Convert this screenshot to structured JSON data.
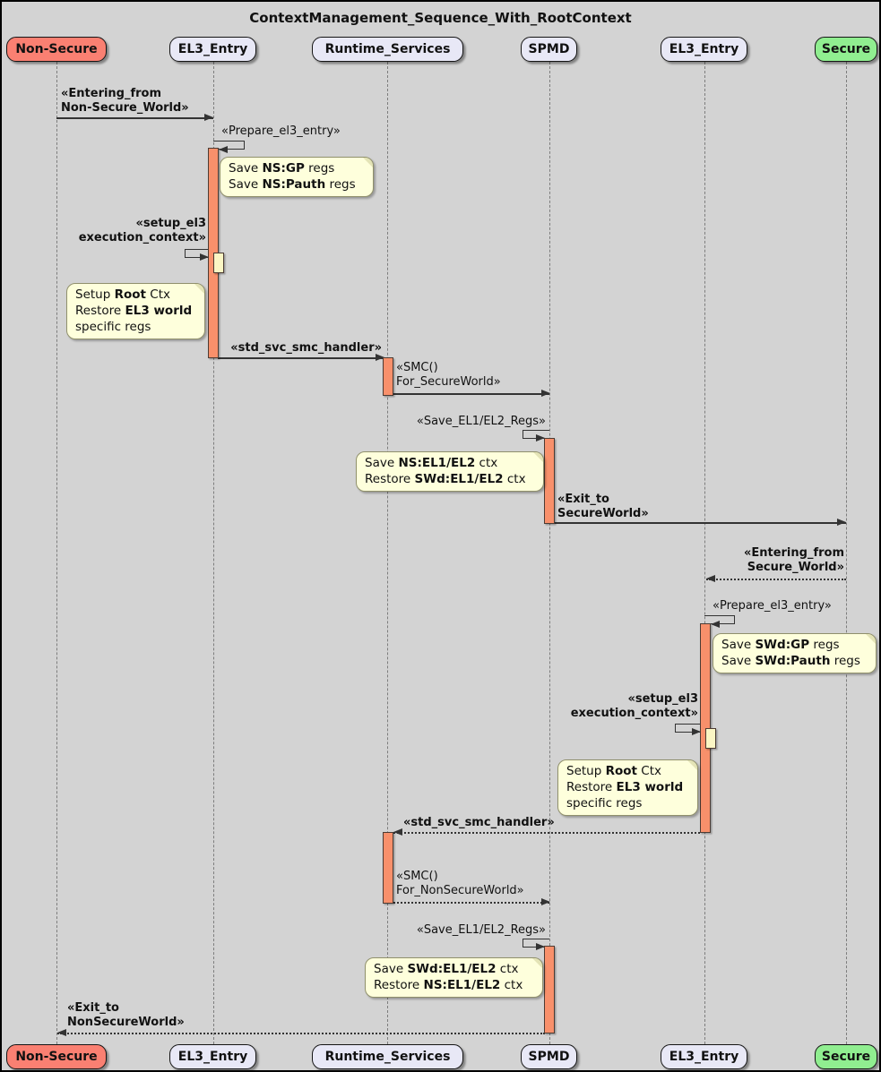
{
  "title": "ContextManagement_Sequence_With_RootContext",
  "colors": {
    "background": "#D3D3D3",
    "participant_default": "#E8E8F6",
    "participant_non_secure": "#FA8072",
    "participant_secure": "#90EE90",
    "activation": "#F8906B",
    "activation_nested": "#FBF6C4",
    "note_background": "#FEFFDC",
    "line": "#333333"
  },
  "participants": [
    {
      "label": "Non-Secure",
      "fill": "#FA8072"
    },
    {
      "label": "EL3_Entry",
      "fill": "#E8E8F6"
    },
    {
      "label": "Runtime_Services",
      "fill": "#E8E8F6"
    },
    {
      "label": "SPMD",
      "fill": "#E8E8F6"
    },
    {
      "label": "EL3_Entry",
      "fill": "#E8E8F6"
    },
    {
      "label": "Secure",
      "fill": "#90EE90"
    }
  ],
  "messages": [
    {
      "label": "«Entering_from\nNon-Secure_World»",
      "from": "Non-Secure",
      "to": "EL3_Entry",
      "style": "solid",
      "bold": true
    },
    {
      "label": "«Prepare_el3_entry»",
      "from": "EL3_Entry",
      "to": "EL3_Entry",
      "style": "self",
      "bold": false
    },
    {
      "label": "«setup_el3\nexecution_context»",
      "from": "EL3_Entry",
      "to": "EL3_Entry",
      "style": "self",
      "bold": true
    },
    {
      "label": "«std_svc_smc_handler»",
      "from": "EL3_Entry",
      "to": "Runtime_Services",
      "style": "solid",
      "bold": true
    },
    {
      "label": "«SMC()\nFor_SecureWorld»",
      "from": "Runtime_Services",
      "to": "SPMD",
      "style": "solid",
      "bold": false
    },
    {
      "label": "«Save_EL1/EL2_Regs»",
      "from": "SPMD",
      "to": "SPMD",
      "style": "self",
      "bold": false
    },
    {
      "label": "«Exit_to\nSecureWorld»",
      "from": "SPMD",
      "to": "Secure",
      "style": "solid",
      "bold": true
    },
    {
      "label": "«Entering_from\nSecure_World»",
      "from": "Secure",
      "to": "EL3_Entry",
      "style": "dotted",
      "bold": true
    },
    {
      "label": "«Prepare_el3_entry»",
      "from": "EL3_Entry",
      "to": "EL3_Entry",
      "style": "self",
      "bold": false
    },
    {
      "label": "«setup_el3\nexecution_context»",
      "from": "EL3_Entry",
      "to": "EL3_Entry",
      "style": "self",
      "bold": true
    },
    {
      "label": "«std_svc_smc_handler»",
      "from": "EL3_Entry",
      "to": "Runtime_Services",
      "style": "dotted",
      "bold": true
    },
    {
      "label": "«SMC()\nFor_NonSecureWorld»",
      "from": "Runtime_Services",
      "to": "SPMD",
      "style": "dotted",
      "bold": false
    },
    {
      "label": "«Save_EL1/EL2_Regs»",
      "from": "SPMD",
      "to": "SPMD",
      "style": "self",
      "bold": false
    },
    {
      "label": "«Exit_to\nNonSecureWorld»",
      "from": "SPMD",
      "to": "Non-Secure",
      "style": "dotted",
      "bold": true
    }
  ],
  "notes": [
    {
      "lines": [
        [
          {
            "t": "Save ",
            "b": false
          },
          {
            "t": "NS:GP",
            "b": true
          },
          {
            "t": " regs",
            "b": false
          }
        ],
        [
          {
            "t": "Save ",
            "b": false
          },
          {
            "t": "NS:Pauth",
            "b": true
          },
          {
            "t": " regs",
            "b": false
          }
        ]
      ]
    },
    {
      "lines": [
        [
          {
            "t": "Setup ",
            "b": false
          },
          {
            "t": "Root",
            "b": true
          },
          {
            "t": " Ctx",
            "b": false
          }
        ],
        [
          {
            "t": "Restore ",
            "b": false
          },
          {
            "t": "EL3 world",
            "b": true
          }
        ],
        [
          {
            "t": "specific regs",
            "b": false
          }
        ]
      ]
    },
    {
      "lines": [
        [
          {
            "t": "Save ",
            "b": false
          },
          {
            "t": "NS:EL1/EL2",
            "b": true
          },
          {
            "t": " ctx",
            "b": false
          }
        ],
        [
          {
            "t": "Restore ",
            "b": false
          },
          {
            "t": "SWd:EL1/EL2",
            "b": true
          },
          {
            "t": " ctx",
            "b": false
          }
        ]
      ]
    },
    {
      "lines": [
        [
          {
            "t": "Save ",
            "b": false
          },
          {
            "t": "SWd:GP",
            "b": true
          },
          {
            "t": " regs",
            "b": false
          }
        ],
        [
          {
            "t": "Save ",
            "b": false
          },
          {
            "t": "SWd:Pauth",
            "b": true
          },
          {
            "t": " regs",
            "b": false
          }
        ]
      ]
    },
    {
      "lines": [
        [
          {
            "t": "Setup ",
            "b": false
          },
          {
            "t": "Root",
            "b": true
          },
          {
            "t": " Ctx",
            "b": false
          }
        ],
        [
          {
            "t": "Restore ",
            "b": false
          },
          {
            "t": "EL3 world",
            "b": true
          }
        ],
        [
          {
            "t": "specific regs",
            "b": false
          }
        ]
      ]
    },
    {
      "lines": [
        [
          {
            "t": "Save ",
            "b": false
          },
          {
            "t": "SWd:EL1/EL2",
            "b": true
          },
          {
            "t": " ctx",
            "b": false
          }
        ],
        [
          {
            "t": "Restore ",
            "b": false
          },
          {
            "t": "NS:EL1/EL2",
            "b": true
          },
          {
            "t": " ctx",
            "b": false
          }
        ]
      ]
    }
  ]
}
